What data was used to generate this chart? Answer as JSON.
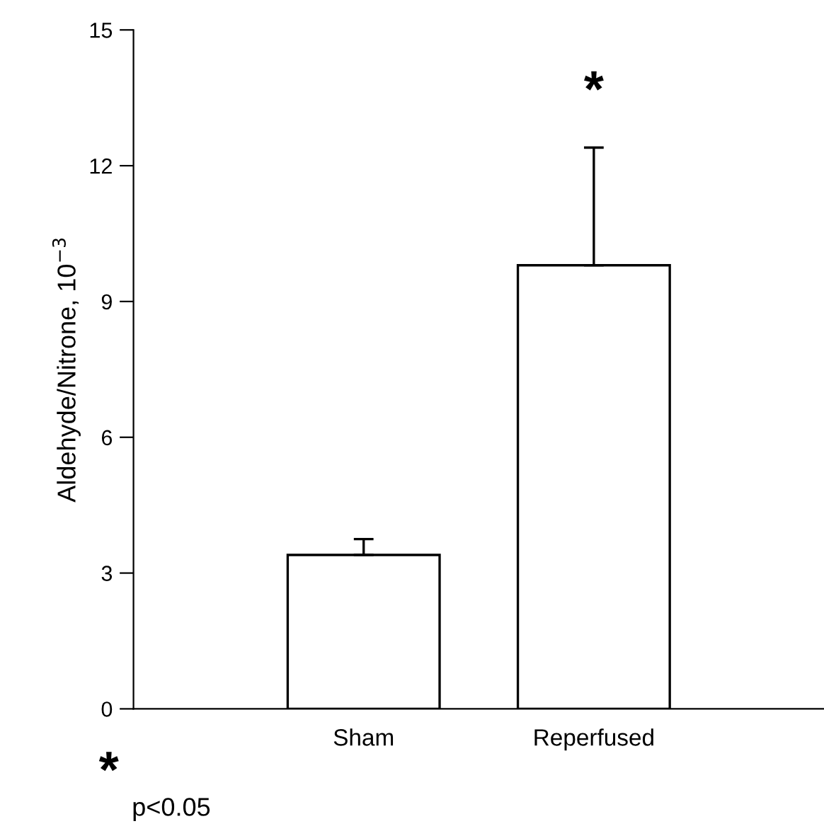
{
  "chart_data": {
    "type": "bar",
    "ylabel": "Aldehyde/Nitrone, 10$^{−3}$",
    "categories": [
      "Sham",
      "Reperfused"
    ],
    "values": [
      3.4,
      9.8
    ],
    "errors": [
      [
        3.4,
        3.75
      ],
      [
        9.8,
        12.4
      ]
    ],
    "color": "#ffffff",
    "ylim": [
      0,
      15
    ],
    "yticks": [
      0,
      3,
      6,
      9,
      12,
      15
    ],
    "grid": false,
    "legend": false,
    "annotations": [
      "*",
      "*\np<0.05"
    ]
  }
}
